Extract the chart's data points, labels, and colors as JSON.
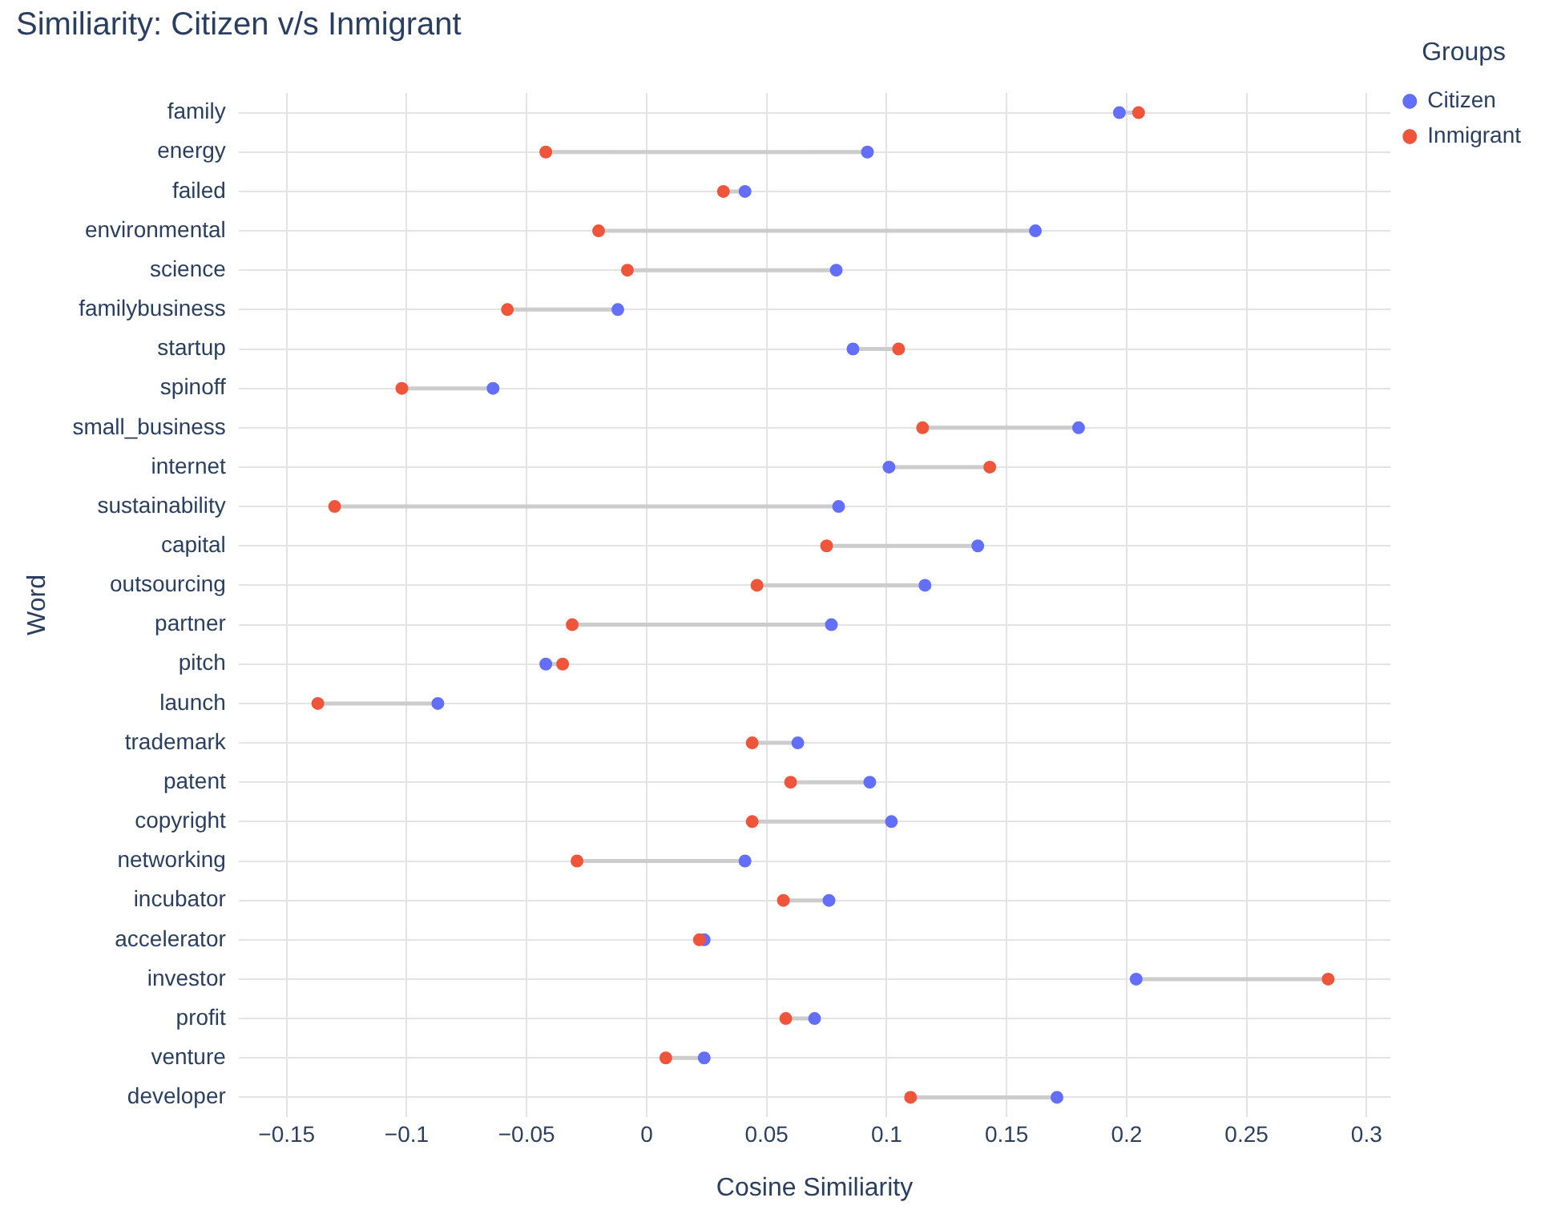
{
  "chart_data": {
    "type": "scatter",
    "orientation": "horizontal",
    "title": "Similiarity: Citizen v/s Inmigrant",
    "xlabel": "Cosine Similiarity",
    "ylabel": "Word",
    "legend_title": "Groups",
    "legend": "top right",
    "grid": true,
    "marker": "circle",
    "categories": [
      "family",
      "energy",
      "failed",
      "environmental",
      "science",
      "familybusiness",
      "startup",
      "spinoff",
      "small_business",
      "internet",
      "sustainability",
      "capital",
      "outsourcing",
      "partner",
      "pitch",
      "launch",
      "trademark",
      "patent",
      "copyright",
      "networking",
      "incubator",
      "accelerator",
      "investor",
      "profit",
      "venture",
      "developer"
    ],
    "xlim": [
      -0.17,
      0.31
    ],
    "xticks": [
      {
        "value": -0.15,
        "label": "−0.15"
      },
      {
        "value": -0.1,
        "label": "−0.1"
      },
      {
        "value": -0.05,
        "label": "−0.05"
      },
      0,
      0.05,
      0.1,
      0.15,
      0.2,
      0.25,
      0.3
    ],
    "series": [
      {
        "name": "Citizen",
        "color": "#636efa",
        "values": [
          0.197,
          0.092,
          0.041,
          0.162,
          0.079,
          -0.012,
          0.086,
          -0.064,
          0.18,
          0.101,
          0.08,
          0.138,
          0.116,
          0.077,
          -0.042,
          -0.087,
          0.063,
          0.093,
          0.102,
          0.041,
          0.076,
          0.024,
          0.204,
          0.07,
          0.024,
          0.171
        ]
      },
      {
        "name": "Inmigrant",
        "color": "#ef553b",
        "values": [
          0.205,
          -0.042,
          0.032,
          -0.02,
          -0.008,
          -0.058,
          0.105,
          -0.102,
          0.115,
          0.143,
          -0.13,
          0.075,
          0.046,
          -0.031,
          -0.035,
          -0.137,
          0.044,
          0.06,
          0.044,
          -0.029,
          0.057,
          0.022,
          0.284,
          0.058,
          0.008,
          0.11
        ]
      }
    ]
  }
}
